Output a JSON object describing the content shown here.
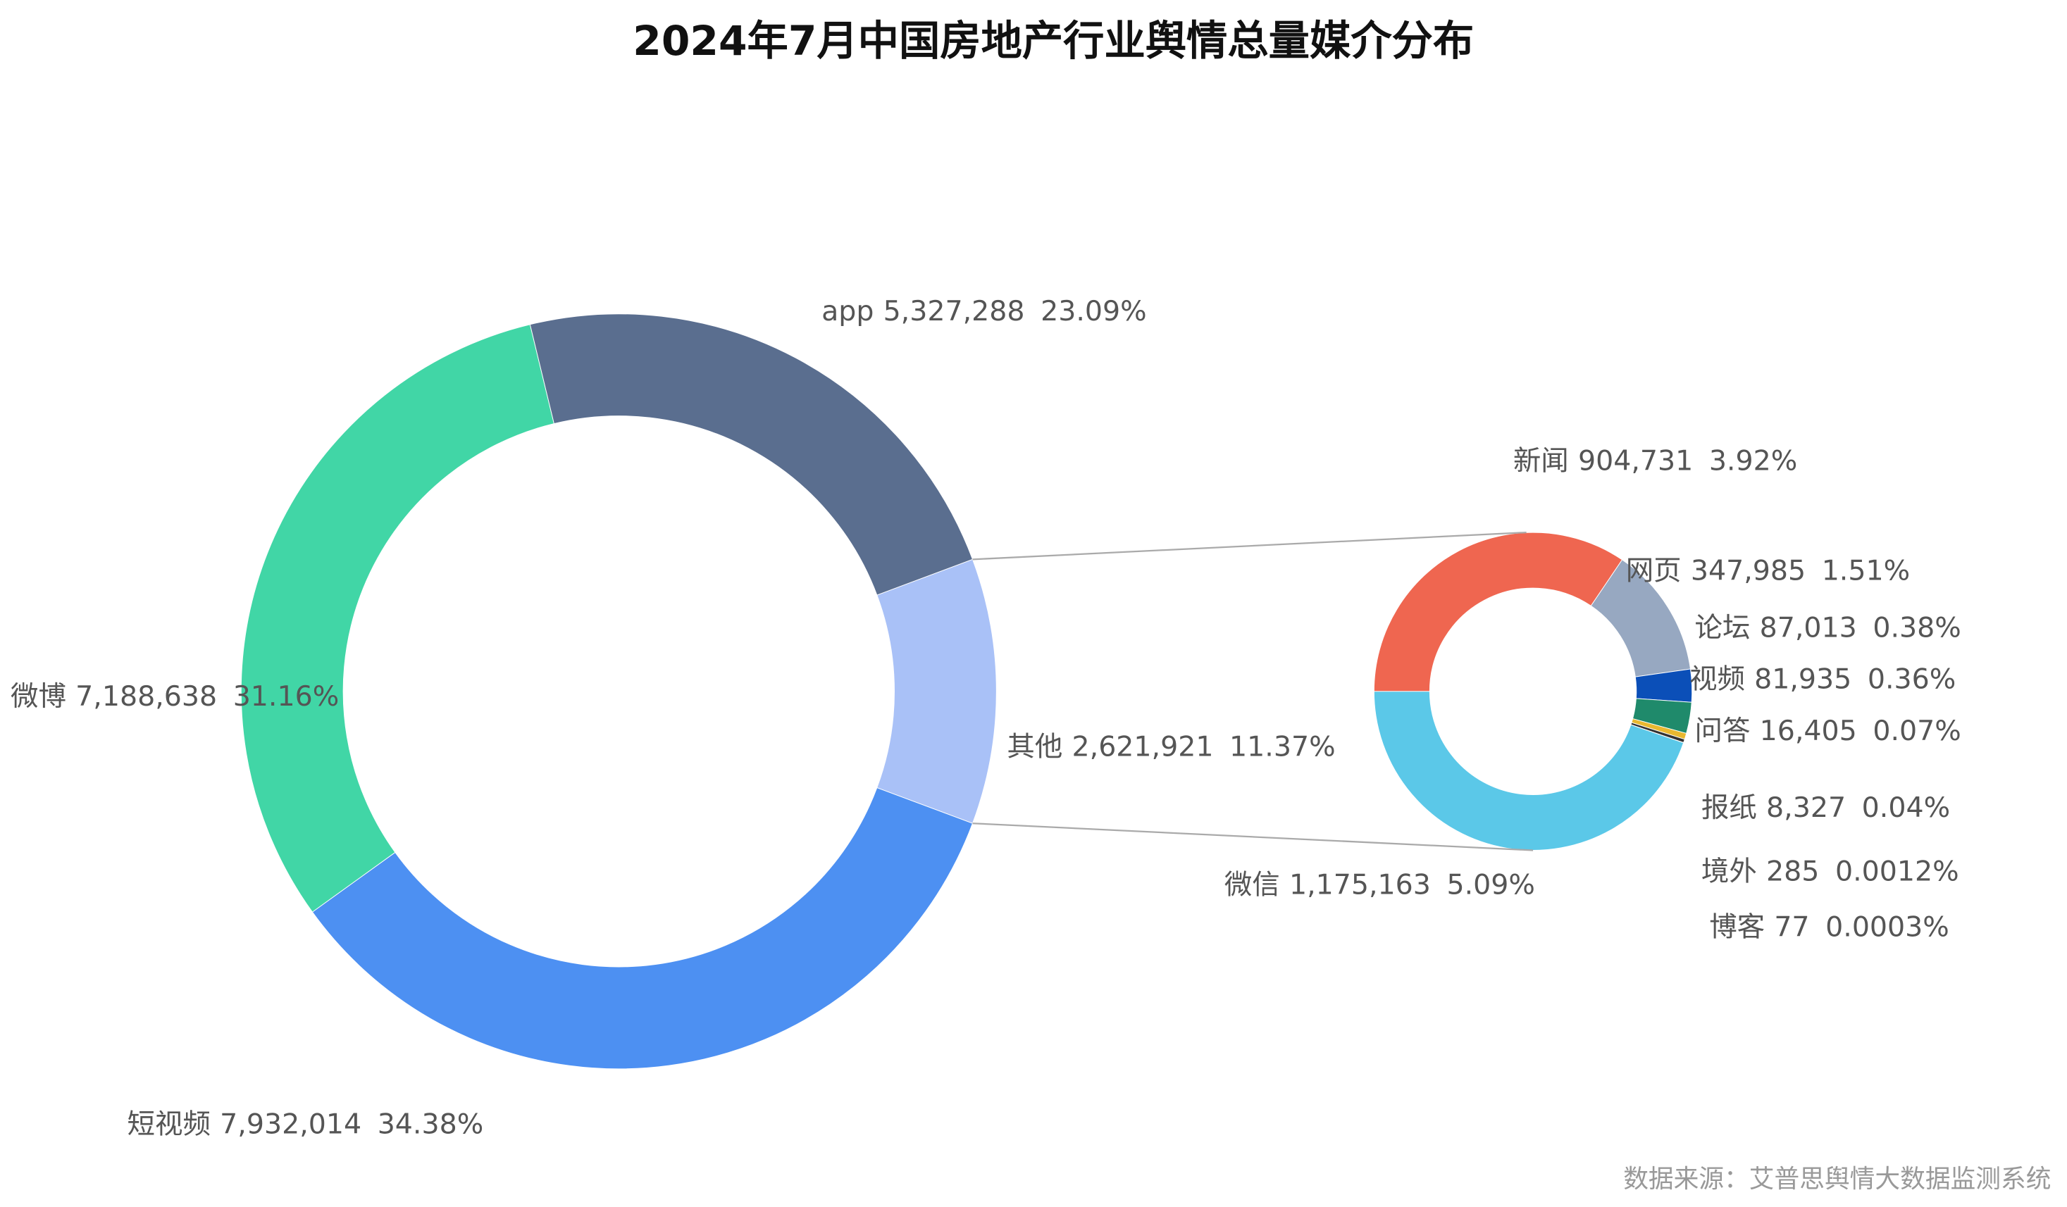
{
  "chart_data": {
    "type": "donut-of-donut",
    "title": "2024年7月中国房地产行业舆情总量媒介分布",
    "source": "数据来源：艾普思舆情大数据监测系统",
    "pies": [
      {
        "categories": [
          "其他",
          "短视频",
          "微博",
          "app"
        ],
        "values": [
          2621921,
          7932014,
          7188638,
          5327288
        ],
        "value_labels": [
          "2,621,921",
          "7,932,014",
          "7,188,638",
          "5,327,288"
        ],
        "percents": [
          11.37,
          34.38,
          31.16,
          23.09
        ],
        "percent_labels": [
          "11.37%",
          "34.38%",
          "31.16%",
          "23.09%"
        ],
        "colors": [
          "#a9c1f7",
          "#4d90f2",
          "#41d6a6",
          "#5a6e8f"
        ]
      },
      {
        "categories": [
          "新闻",
          "网页",
          "论坛",
          "视频",
          "问答",
          "报纸",
          "境外",
          "博客",
          "微信"
        ],
        "values": [
          904731,
          347985,
          87013,
          81935,
          16405,
          8327,
          285,
          77,
          1175163
        ],
        "value_labels": [
          "904,731",
          "347,985",
          "87,013",
          "81,935",
          "16,405",
          "8,327",
          "285",
          "77",
          "1,175,163"
        ],
        "percents": [
          3.92,
          1.51,
          0.38,
          0.36,
          0.07,
          0.04,
          0.0012,
          0.0003,
          5.09
        ],
        "percent_labels": [
          "3.92%",
          "1.51%",
          "0.38%",
          "0.36%",
          "0.07%",
          "0.04%",
          "0.0012%",
          "0.0003%",
          "5.09%"
        ],
        "colors": [
          "#ef6650",
          "#97a8c1",
          "#0b4fb8",
          "#1f8a6b",
          "#e8b830",
          "#333333",
          "#8a6d3b",
          "#777777",
          "#5bc8e8"
        ]
      }
    ]
  }
}
